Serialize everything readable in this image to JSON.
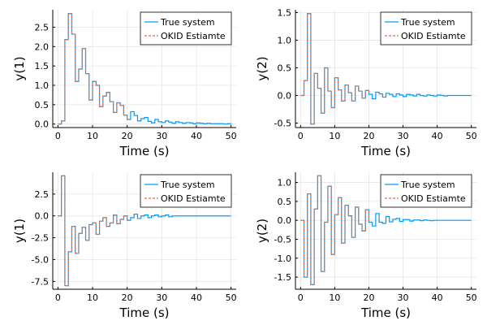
{
  "colors": {
    "true_system": "#009AF9",
    "estimate": "#E26F46",
    "grid": "#E5E5E5",
    "axis": "#000000"
  },
  "chart_data": [
    {
      "type": "line",
      "step": true,
      "panel": "top-left",
      "title": "",
      "xlabel": "Time (s)",
      "ylabel": "y(1)",
      "xlim": [
        -1.5,
        51.5
      ],
      "ylim": [
        -0.09,
        2.95
      ],
      "xticks": [
        0,
        10,
        20,
        30,
        40,
        50
      ],
      "yticks": [
        0.0,
        0.5,
        1.0,
        1.5,
        2.0,
        2.5
      ],
      "ytick_labels": [
        "0.0",
        "0.5",
        "1.0",
        "1.5",
        "2.0",
        "2.5"
      ],
      "legend_position": "top-right",
      "series": [
        {
          "name": "True system",
          "x": [
            0,
            1,
            2,
            3,
            4,
            5,
            6,
            7,
            8,
            9,
            10,
            11,
            12,
            13,
            14,
            15,
            16,
            17,
            18,
            19,
            20,
            21,
            22,
            23,
            24,
            25,
            26,
            27,
            28,
            29,
            30,
            31,
            32,
            33,
            34,
            35,
            36,
            37,
            38,
            39,
            40,
            41,
            42,
            43,
            44,
            45,
            46,
            47,
            48,
            49,
            50
          ],
          "values": [
            0,
            0.08,
            2.18,
            2.85,
            2.32,
            1.1,
            1.42,
            1.95,
            1.3,
            0.62,
            1.1,
            1.0,
            0.45,
            0.72,
            0.82,
            0.58,
            0.3,
            0.55,
            0.48,
            0.23,
            0.12,
            0.32,
            0.22,
            0.08,
            0.14,
            0.17,
            0.07,
            0.03,
            0.12,
            0.06,
            0.04,
            0.08,
            0.05,
            0.02,
            0.06,
            0.04,
            0.02,
            0.04,
            0.03,
            0.01,
            0.03,
            0.02,
            0.01,
            0.02,
            0.01,
            0.01,
            0.01,
            0.01,
            0.0,
            0.01,
            0.0
          ]
        },
        {
          "name": "OKID Estiamte",
          "x": [
            0,
            1,
            2,
            3,
            4,
            5,
            6,
            7,
            8,
            9,
            10,
            11,
            12,
            13,
            14,
            15,
            16,
            17,
            18,
            19,
            20
          ],
          "values": [
            0,
            0.08,
            2.18,
            2.85,
            2.32,
            1.1,
            1.42,
            1.95,
            1.3,
            0.62,
            1.1,
            1.0,
            0.45,
            0.72,
            0.82,
            0.58,
            0.3,
            0.55,
            0.48,
            0.23,
            0.12
          ]
        }
      ]
    },
    {
      "type": "line",
      "step": true,
      "panel": "top-right",
      "title": "",
      "xlabel": "Time (s)",
      "ylabel": "y(2)",
      "xlim": [
        -1.5,
        51.5
      ],
      "ylim": [
        -0.58,
        1.55
      ],
      "xticks": [
        0,
        10,
        20,
        30,
        40,
        50
      ],
      "yticks": [
        -0.5,
        0.0,
        0.5,
        1.0,
        1.5
      ],
      "ytick_labels": [
        "-0.5",
        "0.0",
        "0.5",
        "1.0",
        "1.5"
      ],
      "legend_position": "top-right",
      "series": [
        {
          "name": "True system",
          "x": [
            0,
            1,
            2,
            3,
            4,
            5,
            6,
            7,
            8,
            9,
            10,
            11,
            12,
            13,
            14,
            15,
            16,
            17,
            18,
            19,
            20,
            21,
            22,
            23,
            24,
            25,
            26,
            27,
            28,
            29,
            30,
            31,
            32,
            33,
            34,
            35,
            36,
            37,
            38,
            39,
            40,
            41,
            42,
            43,
            44,
            45,
            46,
            47,
            48,
            49,
            50
          ],
          "values": [
            0,
            0.27,
            1.48,
            -0.52,
            0.4,
            0.13,
            -0.32,
            0.5,
            0.08,
            -0.22,
            0.32,
            0.1,
            -0.1,
            0.19,
            0.05,
            -0.1,
            0.17,
            0.08,
            -0.05,
            0.09,
            0.02,
            -0.06,
            0.06,
            0.03,
            -0.03,
            0.04,
            0.02,
            -0.02,
            0.03,
            0.01,
            -0.02,
            0.02,
            0.01,
            -0.01,
            0.02,
            0.0,
            -0.01,
            0.01,
            0.0,
            -0.01,
            0.01,
            0.0,
            -0.01,
            0.0,
            0.0,
            0.0,
            0.0,
            0.0,
            0.0,
            0.0,
            0.0
          ]
        },
        {
          "name": "OKID Estiamte",
          "x": [
            0,
            1,
            2,
            3,
            4,
            5,
            6,
            7,
            8,
            9,
            10,
            11,
            12,
            13,
            14,
            15,
            16,
            17,
            18,
            19,
            20
          ],
          "values": [
            0,
            0.27,
            1.48,
            -0.52,
            0.4,
            0.13,
            -0.32,
            0.5,
            0.08,
            -0.22,
            0.32,
            0.1,
            -0.1,
            0.19,
            0.05,
            -0.1,
            0.17,
            0.08,
            -0.05,
            0.09,
            0.02
          ]
        }
      ]
    },
    {
      "type": "line",
      "step": true,
      "panel": "bottom-left",
      "title": "",
      "xlabel": "Time (s)",
      "ylabel": "y(1)",
      "xlim": [
        -1.5,
        51.5
      ],
      "ylim": [
        -8.4,
        5.0
      ],
      "xticks": [
        0,
        10,
        20,
        30,
        40,
        50
      ],
      "yticks": [
        -7.5,
        -5.0,
        -2.5,
        0.0,
        2.5
      ],
      "ytick_labels": [
        "-7.5",
        "-5.0",
        "-2.5",
        "0.0",
        "2.5"
      ],
      "legend_position": "top-right",
      "series": [
        {
          "name": "True system",
          "x": [
            0,
            1,
            2,
            3,
            4,
            5,
            6,
            7,
            8,
            9,
            10,
            11,
            12,
            13,
            14,
            15,
            16,
            17,
            18,
            19,
            20,
            21,
            22,
            23,
            24,
            25,
            26,
            27,
            28,
            29,
            30,
            31,
            32,
            33,
            34,
            35,
            36,
            37,
            38,
            39,
            40,
            41,
            42,
            43,
            44,
            45,
            46,
            47,
            48,
            49,
            50
          ],
          "values": [
            0,
            4.6,
            -8.0,
            -4.1,
            -1.2,
            -4.3,
            -2.0,
            -1.3,
            -2.8,
            -1.0,
            -0.8,
            -2.1,
            -0.6,
            -0.2,
            -1.2,
            -0.8,
            0.1,
            -0.9,
            -0.4,
            0.0,
            -0.5,
            -0.2,
            0.2,
            -0.3,
            0.0,
            0.1,
            -0.2,
            0.0,
            0.1,
            -0.1,
            0.0,
            0.1,
            -0.1,
            0.0,
            0.0,
            0.0,
            0.0,
            0.0,
            0.0,
            0.0,
            0.0,
            0.0,
            0.0,
            0.0,
            0.0,
            0.0,
            0.0,
            0.0,
            0.0,
            0.0,
            0.0
          ]
        },
        {
          "name": "OKID Estiamte",
          "x": [
            0,
            1,
            2,
            3,
            4,
            5,
            6,
            7,
            8,
            9,
            10,
            11,
            12,
            13,
            14,
            15,
            16,
            17,
            18,
            19,
            20
          ],
          "values": [
            0,
            4.6,
            -8.0,
            -4.1,
            -1.2,
            -4.3,
            -2.0,
            -1.3,
            -2.8,
            -1.0,
            -0.8,
            -2.1,
            -0.6,
            -0.2,
            -1.2,
            -0.8,
            0.1,
            -0.9,
            -0.4,
            0.0,
            -0.5
          ]
        }
      ]
    },
    {
      "type": "line",
      "step": true,
      "panel": "bottom-right",
      "title": "",
      "xlabel": "Time (s)",
      "ylabel": "y(2)",
      "xlim": [
        -1.5,
        51.5
      ],
      "ylim": [
        -1.82,
        1.27
      ],
      "xticks": [
        0,
        10,
        20,
        30,
        40,
        50
      ],
      "yticks": [
        -1.5,
        -1.0,
        -0.5,
        0.0,
        0.5,
        1.0
      ],
      "ytick_labels": [
        "-1.5",
        "-1.0",
        "-0.5",
        "0.0",
        "0.5",
        "1.0"
      ],
      "legend_position": "top-right",
      "series": [
        {
          "name": "True system",
          "x": [
            0,
            1,
            2,
            3,
            4,
            5,
            6,
            7,
            8,
            9,
            10,
            11,
            12,
            13,
            14,
            15,
            16,
            17,
            18,
            19,
            20,
            21,
            22,
            23,
            24,
            25,
            26,
            27,
            28,
            29,
            30,
            31,
            32,
            33,
            34,
            35,
            36,
            37,
            38,
            39,
            40,
            41,
            42,
            43,
            44,
            45,
            46,
            47,
            48,
            49,
            50
          ],
          "values": [
            0,
            -1.5,
            0.7,
            -1.7,
            0.3,
            1.18,
            -1.35,
            -0.05,
            0.9,
            -0.9,
            0.15,
            0.6,
            -0.6,
            0.4,
            0.12,
            -0.45,
            0.35,
            -0.1,
            -0.28,
            0.28,
            -0.05,
            -0.15,
            0.18,
            -0.05,
            -0.08,
            0.1,
            -0.04,
            0.03,
            0.05,
            -0.03,
            0.02,
            0.02,
            -0.02,
            0.01,
            0.01,
            -0.01,
            0.01,
            0.0,
            -0.01,
            0.0,
            0.0,
            0.0,
            0.0,
            0.0,
            0.0,
            0.0,
            0.0,
            0.0,
            0.0,
            0.0,
            0.0
          ]
        },
        {
          "name": "OKID Estiamte",
          "x": [
            0,
            1,
            2,
            3,
            4,
            5,
            6,
            7,
            8,
            9,
            10,
            11,
            12,
            13,
            14,
            15,
            16,
            17,
            18,
            19,
            20
          ],
          "values": [
            0,
            -1.5,
            0.7,
            -1.7,
            0.3,
            1.18,
            -1.35,
            -0.05,
            0.9,
            -0.9,
            0.15,
            0.6,
            -0.6,
            0.4,
            0.12,
            -0.45,
            0.35,
            -0.1,
            -0.28,
            0.28,
            -0.05
          ]
        }
      ]
    }
  ]
}
